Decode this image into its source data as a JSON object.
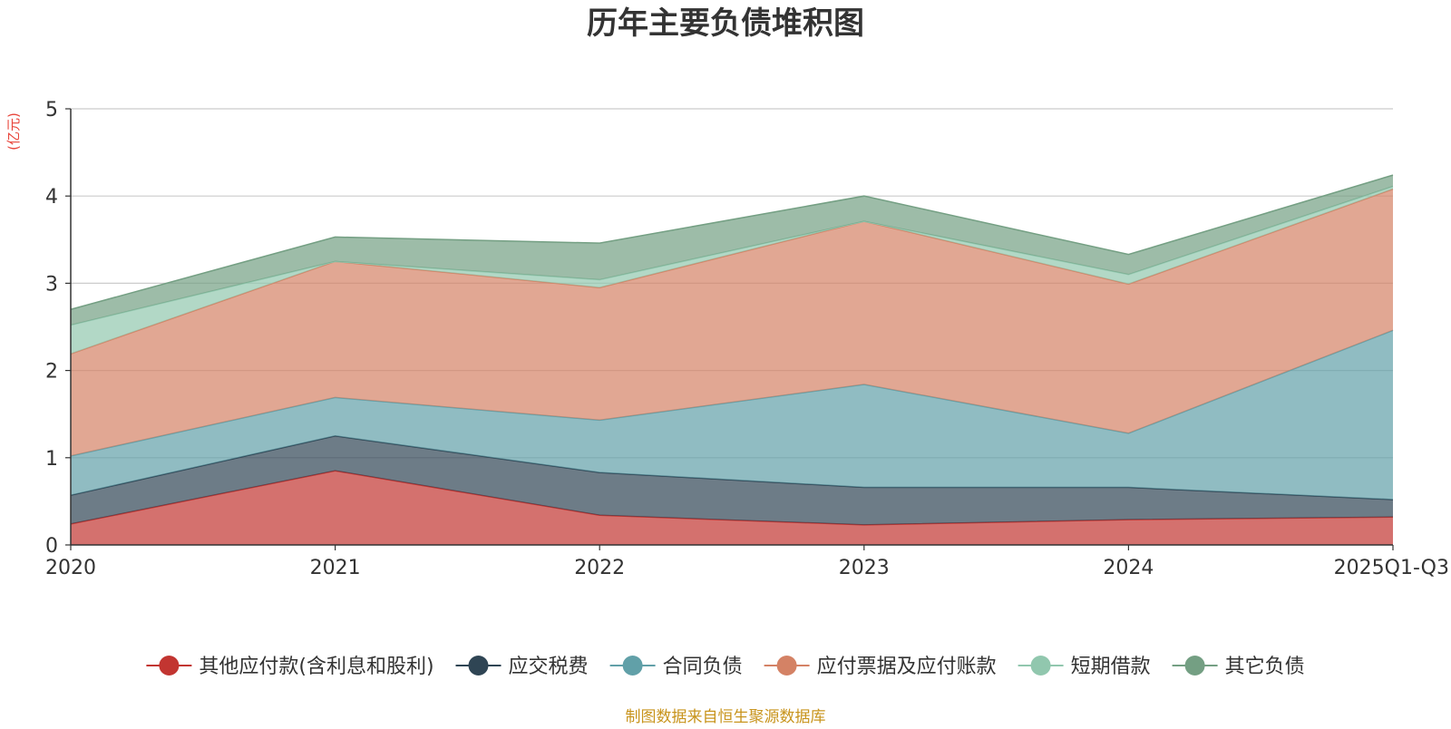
{
  "chart_data": {
    "type": "area",
    "stacked": true,
    "title": "历年主要负债堆积图",
    "unit_label": "(亿元)",
    "source": "制图数据来自恒生聚源数据库",
    "categories": [
      "2020",
      "2021",
      "2022",
      "2023",
      "2024",
      "2025Q1-Q3"
    ],
    "ylim": [
      0,
      5
    ],
    "yticks": [
      0,
      1,
      2,
      3,
      4,
      5
    ],
    "grid": true,
    "legend_position": "bottom",
    "series": [
      {
        "name": "其他应付款(含利息和股利)",
        "color": "#c23531",
        "values": [
          0.24,
          0.85,
          0.34,
          0.23,
          0.29,
          0.32
        ]
      },
      {
        "name": "应交税费",
        "color": "#2f4554",
        "values": [
          0.33,
          0.4,
          0.49,
          0.43,
          0.37,
          0.2
        ]
      },
      {
        "name": "合同负债",
        "color": "#61a0a8",
        "values": [
          0.45,
          0.44,
          0.6,
          1.18,
          0.62,
          1.94
        ]
      },
      {
        "name": "应付票据及应付账款",
        "color": "#d48265",
        "values": [
          1.17,
          1.56,
          1.52,
          1.87,
          1.71,
          1.62
        ]
      },
      {
        "name": "短期借款",
        "color": "#91c7ae",
        "values": [
          0.33,
          0.0,
          0.09,
          0.0,
          0.11,
          0.03
        ]
      },
      {
        "name": "其它负债",
        "color": "#749f83",
        "values": [
          0.18,
          0.28,
          0.42,
          0.29,
          0.23,
          0.13
        ]
      }
    ]
  }
}
